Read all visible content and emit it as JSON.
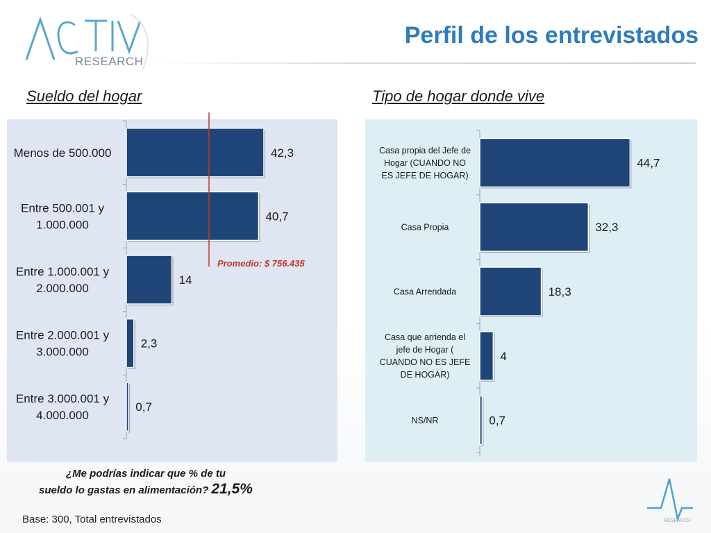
{
  "header": {
    "title": "Perfil de los entrevistados",
    "logo_text": "ACTIVA",
    "logo_subtext": "RESEARCH"
  },
  "colors": {
    "bar": "#1f4478",
    "title": "#2e7bbf",
    "average_line": "#c0392b",
    "left_panel_bg": "#dfe5f2",
    "right_panel_bg": "#ddeef5"
  },
  "chart_data": [
    {
      "type": "bar",
      "orientation": "horizontal",
      "title": "Sueldo del hogar",
      "categories": [
        "Menos de 500.000",
        "Entre 500.001 y 1.000.000",
        "Entre 1.000.001 y 2.000.000",
        "Entre 2.000.001 y 3.000.000",
        "Entre 3.000.001 y 4.000.000"
      ],
      "category_lines": [
        [
          "Menos de 500.000"
        ],
        [
          "Entre 500.001 y",
          "1.000.000"
        ],
        [
          "Entre 1.000.001 y",
          "2.000.000"
        ],
        [
          "Entre 2.000.001 y",
          "3.000.000"
        ],
        [
          "Entre 3.000.001 y",
          "4.000.000"
        ]
      ],
      "values": [
        42.3,
        40.7,
        14,
        2.3,
        0.7
      ],
      "value_labels": [
        "42,3",
        "40,7",
        "14",
        "2,3",
        "0,7"
      ],
      "xlim": [
        0,
        50
      ],
      "average_label": "Promedio: $ 756.435"
    },
    {
      "type": "bar",
      "orientation": "horizontal",
      "title": "Tipo de hogar donde vive",
      "categories": [
        "Casa propia del Jefe de Hogar (CUANDO NO ES JEFE DE HOGAR)",
        "Casa Propia",
        "Casa Arrendada",
        "Casa que arrienda el jefe de Hogar ( CUANDO NO ES JEFE DE HOGAR)",
        "NS/NR"
      ],
      "category_lines": [
        [
          "Casa propia del Jefe de",
          "Hogar  (CUANDO NO",
          "ES JEFE DE HOGAR)"
        ],
        [
          "Casa Propia"
        ],
        [
          "Casa Arrendada"
        ],
        [
          "Casa que arrienda el",
          "jefe de Hogar (",
          "CUANDO NO ES JEFE",
          "DE HOGAR)"
        ],
        [
          "NS/NR"
        ]
      ],
      "values": [
        44.7,
        32.3,
        18.3,
        4,
        0.7
      ],
      "value_labels": [
        "44,7",
        "32,3",
        "18,3",
        "4",
        "0,7"
      ],
      "xlim": [
        0,
        50
      ]
    }
  ],
  "footer": {
    "question_line1": "¿Me podrías indicar que % de tu",
    "question_line2": "sueldo lo gastas en alimentación?",
    "question_value": "21,5%",
    "base_note": "Base: 300, Total entrevistados"
  }
}
